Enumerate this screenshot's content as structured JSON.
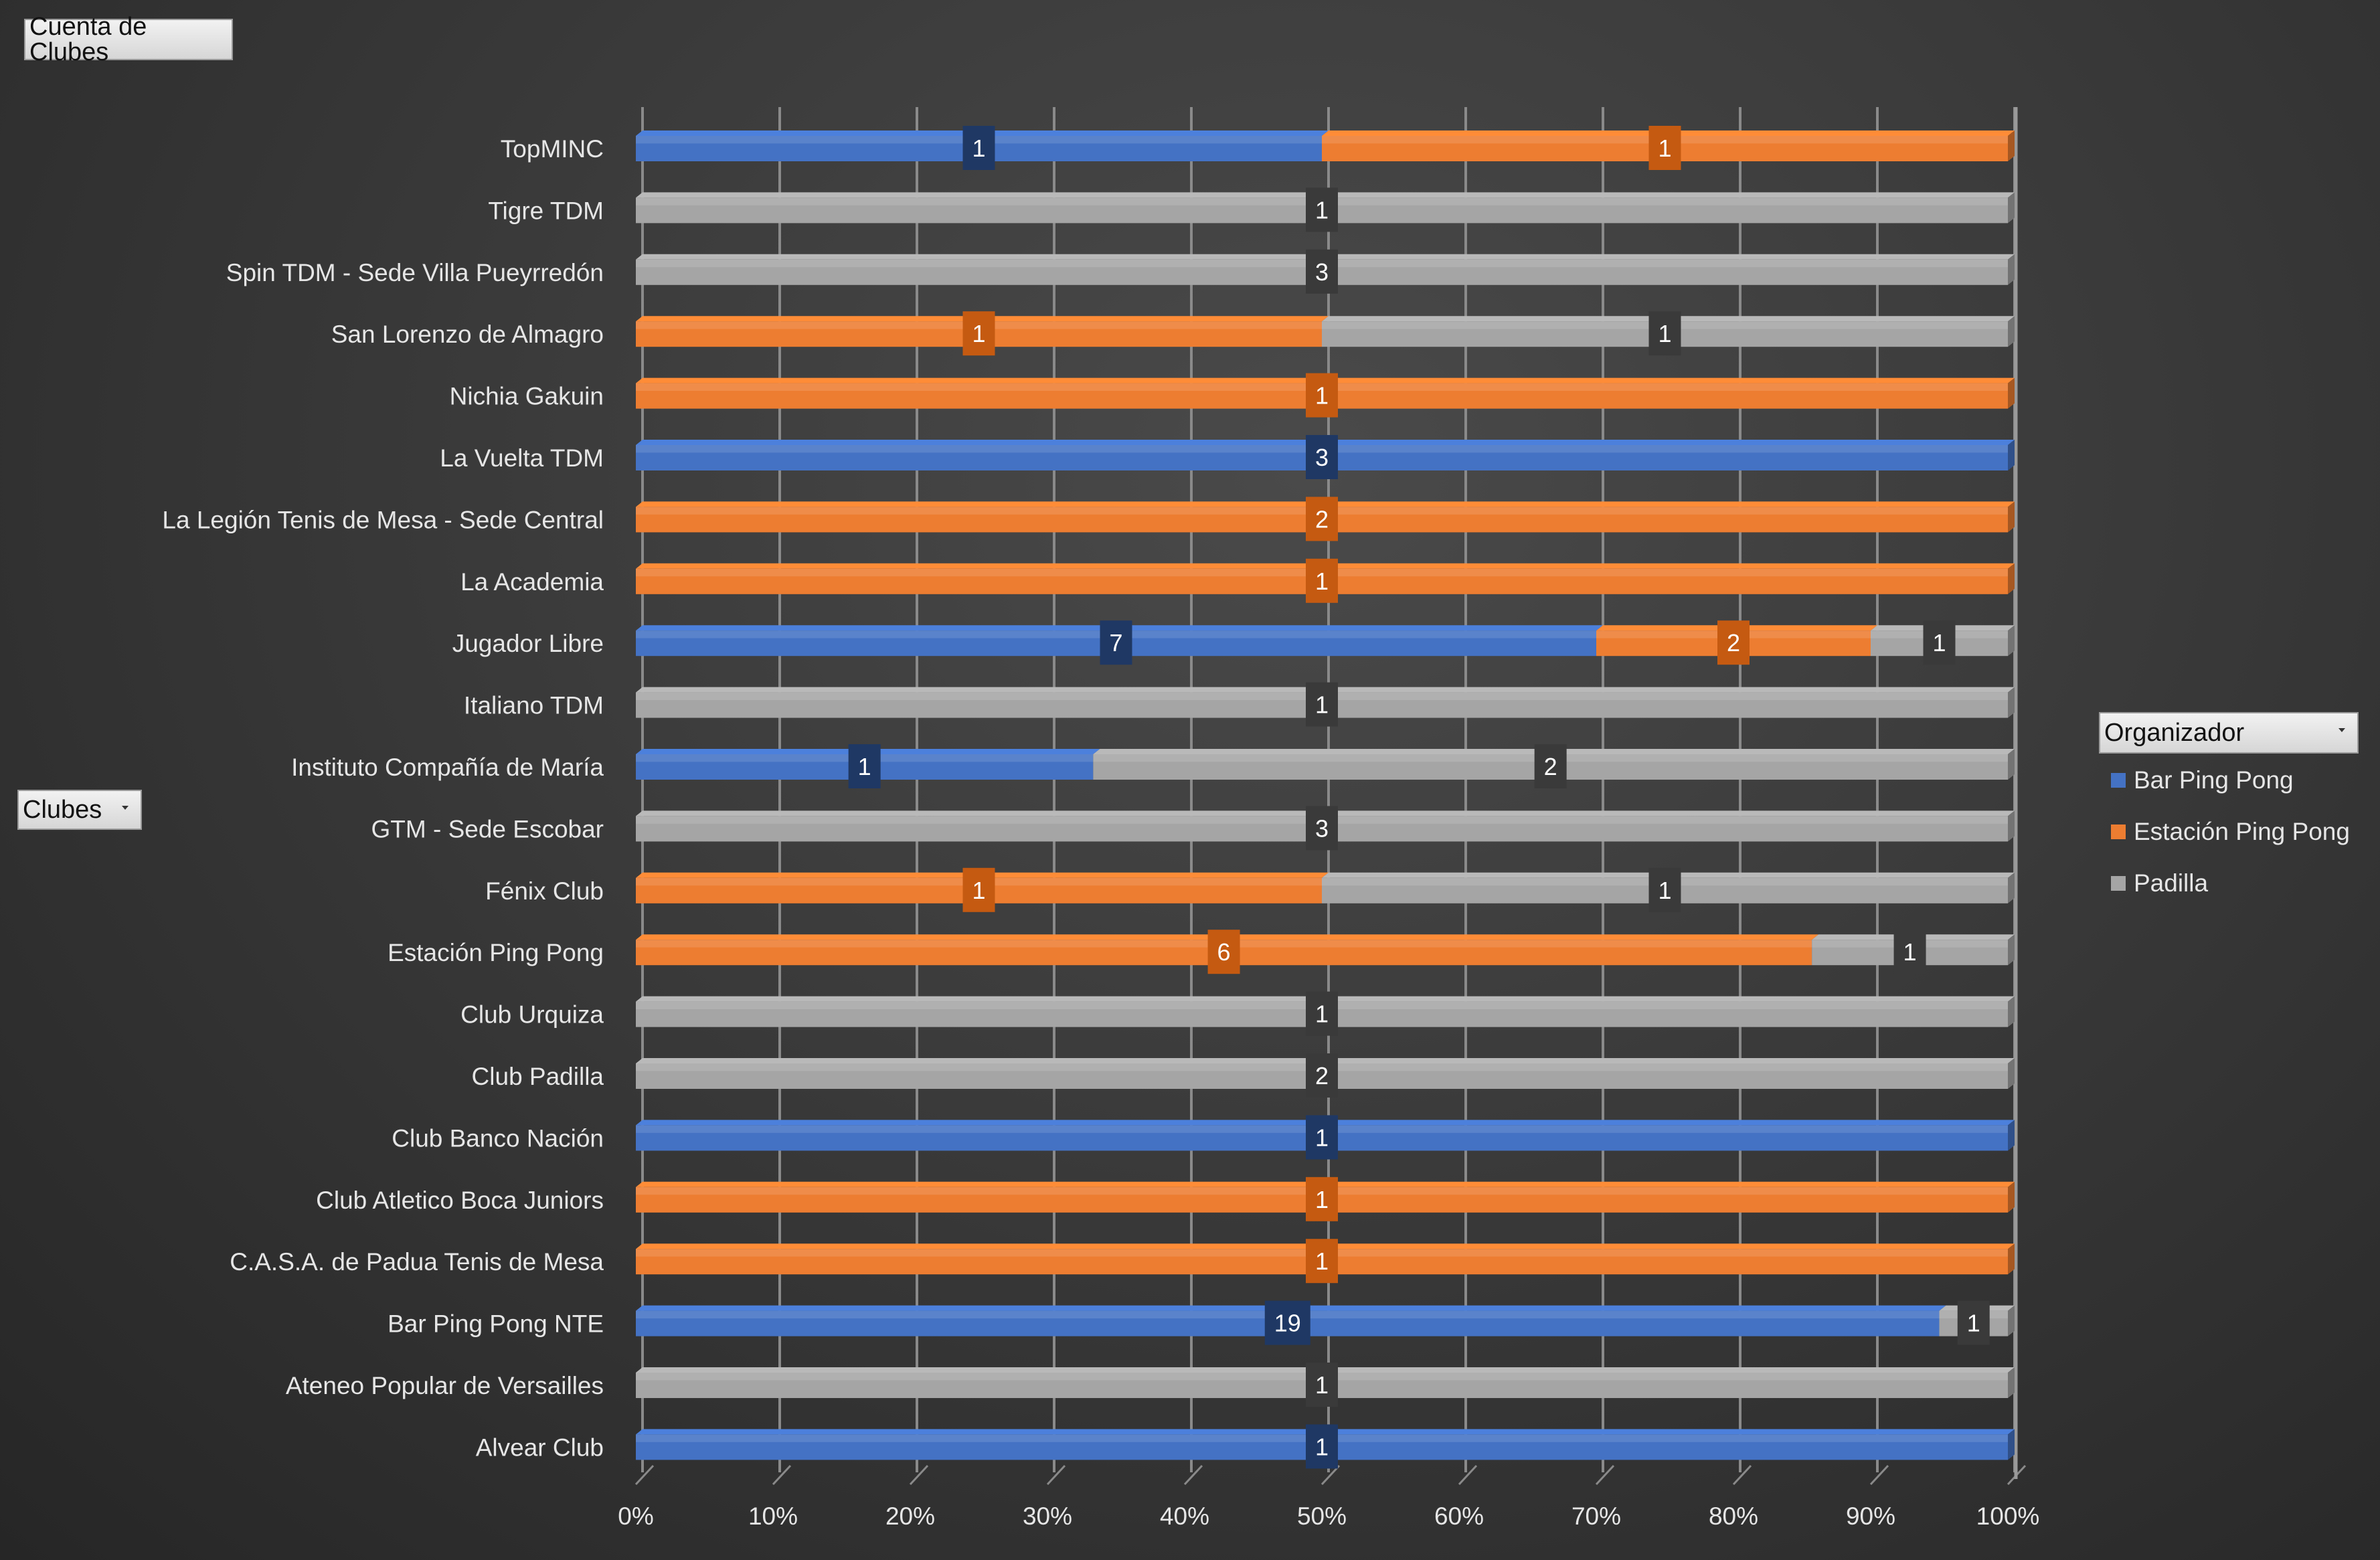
{
  "buttons": {
    "values_field": "Cuenta de Clubes",
    "rows_field": "Clubes",
    "legend_field": "Organizador"
  },
  "colors": {
    "Bar Ping Pong": "#4472c4",
    "Estación Ping Pong": "#ed7d31",
    "Padilla": "#a5a5a5",
    "label_Bar Ping Pong": "#1f3864",
    "label_Estación Ping Pong": "#c55a11",
    "label_Padilla": "#3a3a3a",
    "text": "#e6e6e6"
  },
  "chart_data": {
    "type": "bar",
    "orientation": "horizontal",
    "stacked": "100%",
    "categories": [
      "TopMINC",
      "Tigre TDM",
      "Spin TDM - Sede Villa Pueyrredón",
      "San Lorenzo de Almagro",
      "Nichia Gakuin",
      "La Vuelta TDM",
      "La Legión Tenis de Mesa - Sede Central",
      "La Academia",
      "Jugador Libre",
      "Italiano TDM",
      "Instituto Compañía de María",
      "GTM - Sede Escobar",
      "Fénix Club",
      "Estación Ping Pong",
      "Club Urquiza",
      "Club Padilla",
      "Club Banco Nación",
      "Club Atletico Boca Juniors",
      "C.A.S.A. de Padua Tenis de Mesa",
      "Bar Ping Pong NTE",
      "Ateneo Popular de Versailles",
      "Alvear Club"
    ],
    "series": [
      {
        "name": "Bar Ping Pong",
        "values": [
          1,
          0,
          0,
          0,
          0,
          3,
          0,
          0,
          7,
          0,
          1,
          0,
          0,
          0,
          0,
          0,
          1,
          0,
          0,
          19,
          0,
          1
        ]
      },
      {
        "name": "Estación Ping Pong",
        "values": [
          1,
          0,
          0,
          1,
          1,
          0,
          2,
          1,
          2,
          0,
          0,
          0,
          1,
          6,
          0,
          0,
          0,
          1,
          1,
          0,
          0,
          0
        ]
      },
      {
        "name": "Padilla",
        "values": [
          0,
          1,
          3,
          1,
          0,
          0,
          0,
          0,
          1,
          1,
          2,
          3,
          1,
          1,
          1,
          2,
          0,
          0,
          0,
          1,
          1,
          0
        ]
      }
    ],
    "x_ticks": [
      "0%",
      "10%",
      "20%",
      "30%",
      "40%",
      "50%",
      "60%",
      "70%",
      "80%",
      "90%",
      "100%"
    ],
    "xlim": [
      0,
      100
    ],
    "grid": true,
    "legend": {
      "position": "right",
      "title": "Organizador"
    }
  }
}
